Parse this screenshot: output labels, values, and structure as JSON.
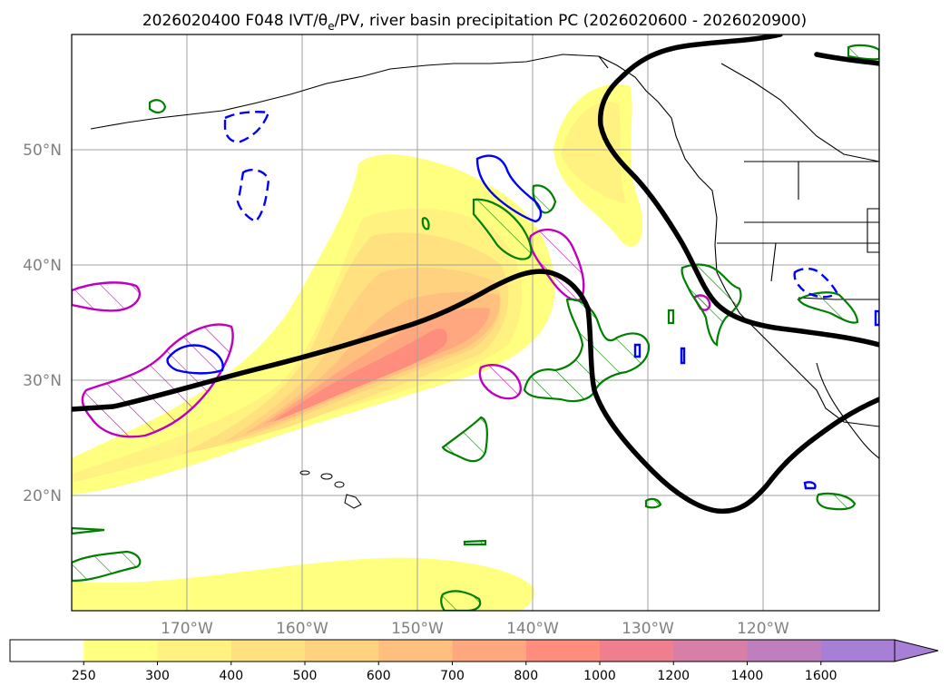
{
  "title": {
    "text": "2026020400 F048 IVT/θ",
    "sub": "e",
    "rest": "/PV, river basin precipitation PC (2026020600 - 2026020900)"
  },
  "map": {
    "lat_labels": [
      "50°N",
      "40°N",
      "30°N",
      "20°N"
    ],
    "lon_labels": [
      "170°W",
      "160°W",
      "150°W",
      "140°W",
      "130°W",
      "120°W"
    ],
    "gridlines": true,
    "extent": {
      "lon_min": -180,
      "lon_max": -110,
      "lat_min": 10,
      "lat_max": 60
    }
  },
  "colorbar": {
    "labels": [
      "250",
      "300",
      "400",
      "500",
      "600",
      "700",
      "800",
      "1000",
      "1200",
      "1400",
      "1600"
    ],
    "colors": [
      "#ffffff",
      "#ffff80",
      "#fff280",
      "#ffe27f",
      "#ffd27f",
      "#ffbf7f",
      "#ffa77e",
      "#ff8d7e",
      "#ef7f8e",
      "#d77fa6",
      "#bf7fbe",
      "#a77fd6"
    ],
    "extend": "max"
  },
  "chart_data": {
    "type": "contour",
    "variable_labels": [
      "IVT",
      "θe",
      "PV",
      "river basin precipitation PC"
    ],
    "contour_levels": [
      250,
      300,
      400,
      500,
      600,
      700,
      800,
      1000,
      1200,
      1400,
      1600
    ],
    "line_colors": {
      "theta_e_line": "#000000",
      "green_contours": "#008000",
      "magenta_contours": "#bf00bf",
      "blue_contours": "#0000ff"
    }
  }
}
